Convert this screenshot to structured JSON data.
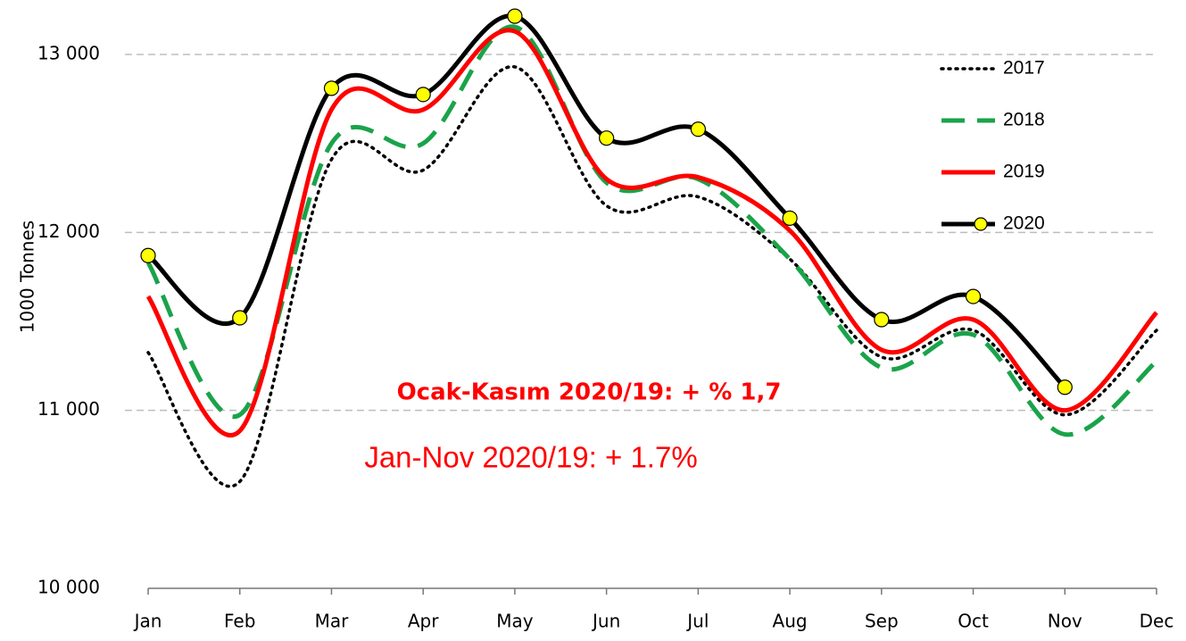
{
  "chart_data": {
    "type": "line",
    "y_label": "1000 Tonnes",
    "annotations": [
      "Ocak-Kasım 2020/19: + % 1,7",
      "Jan-Nov 2020/19: + 1.7%"
    ],
    "categories": [
      "Jan",
      "Feb",
      "Mar",
      "Apr",
      "May",
      "Jun",
      "Jul",
      "Aug",
      "Sep",
      "Oct",
      "Nov",
      "Dec"
    ],
    "series": [
      {
        "name": "2017",
        "color": "#000000",
        "line_style": "dotted",
        "values": [
          11325,
          10600,
          12410,
          12350,
          12930,
          12150,
          12200,
          11850,
          11300,
          11450,
          10975,
          11450
        ]
      },
      {
        "name": "2018",
        "color": "#1aa34a",
        "line_style": "dashed",
        "values": [
          11830,
          10975,
          12500,
          12500,
          13155,
          12280,
          12300,
          11850,
          11240,
          11425,
          10865,
          11275
        ]
      },
      {
        "name": "2019",
        "color": "#ff0000",
        "line_style": "solid",
        "values": [
          11640,
          10885,
          12690,
          12690,
          13130,
          12300,
          12310,
          12010,
          11340,
          11510,
          11000,
          11550
        ]
      },
      {
        "name": "2020",
        "color": "#000000",
        "line_style": "solid",
        "marker": "circle",
        "marker_color": "#ffff00",
        "values": [
          11870,
          11520,
          12810,
          12775,
          13215,
          12530,
          12580,
          12080,
          11510,
          11640,
          11130,
          null
        ]
      }
    ],
    "ylim": [
      10000,
      13300
    ],
    "yticks": [
      {
        "value": 10000,
        "label": "10 000"
      },
      {
        "value": 11000,
        "label": "11 000"
      },
      {
        "value": 12000,
        "label": "12 000"
      },
      {
        "value": 13000,
        "label": "13 000"
      }
    ],
    "grid": true,
    "smooth": true,
    "legend": "upper right"
  }
}
